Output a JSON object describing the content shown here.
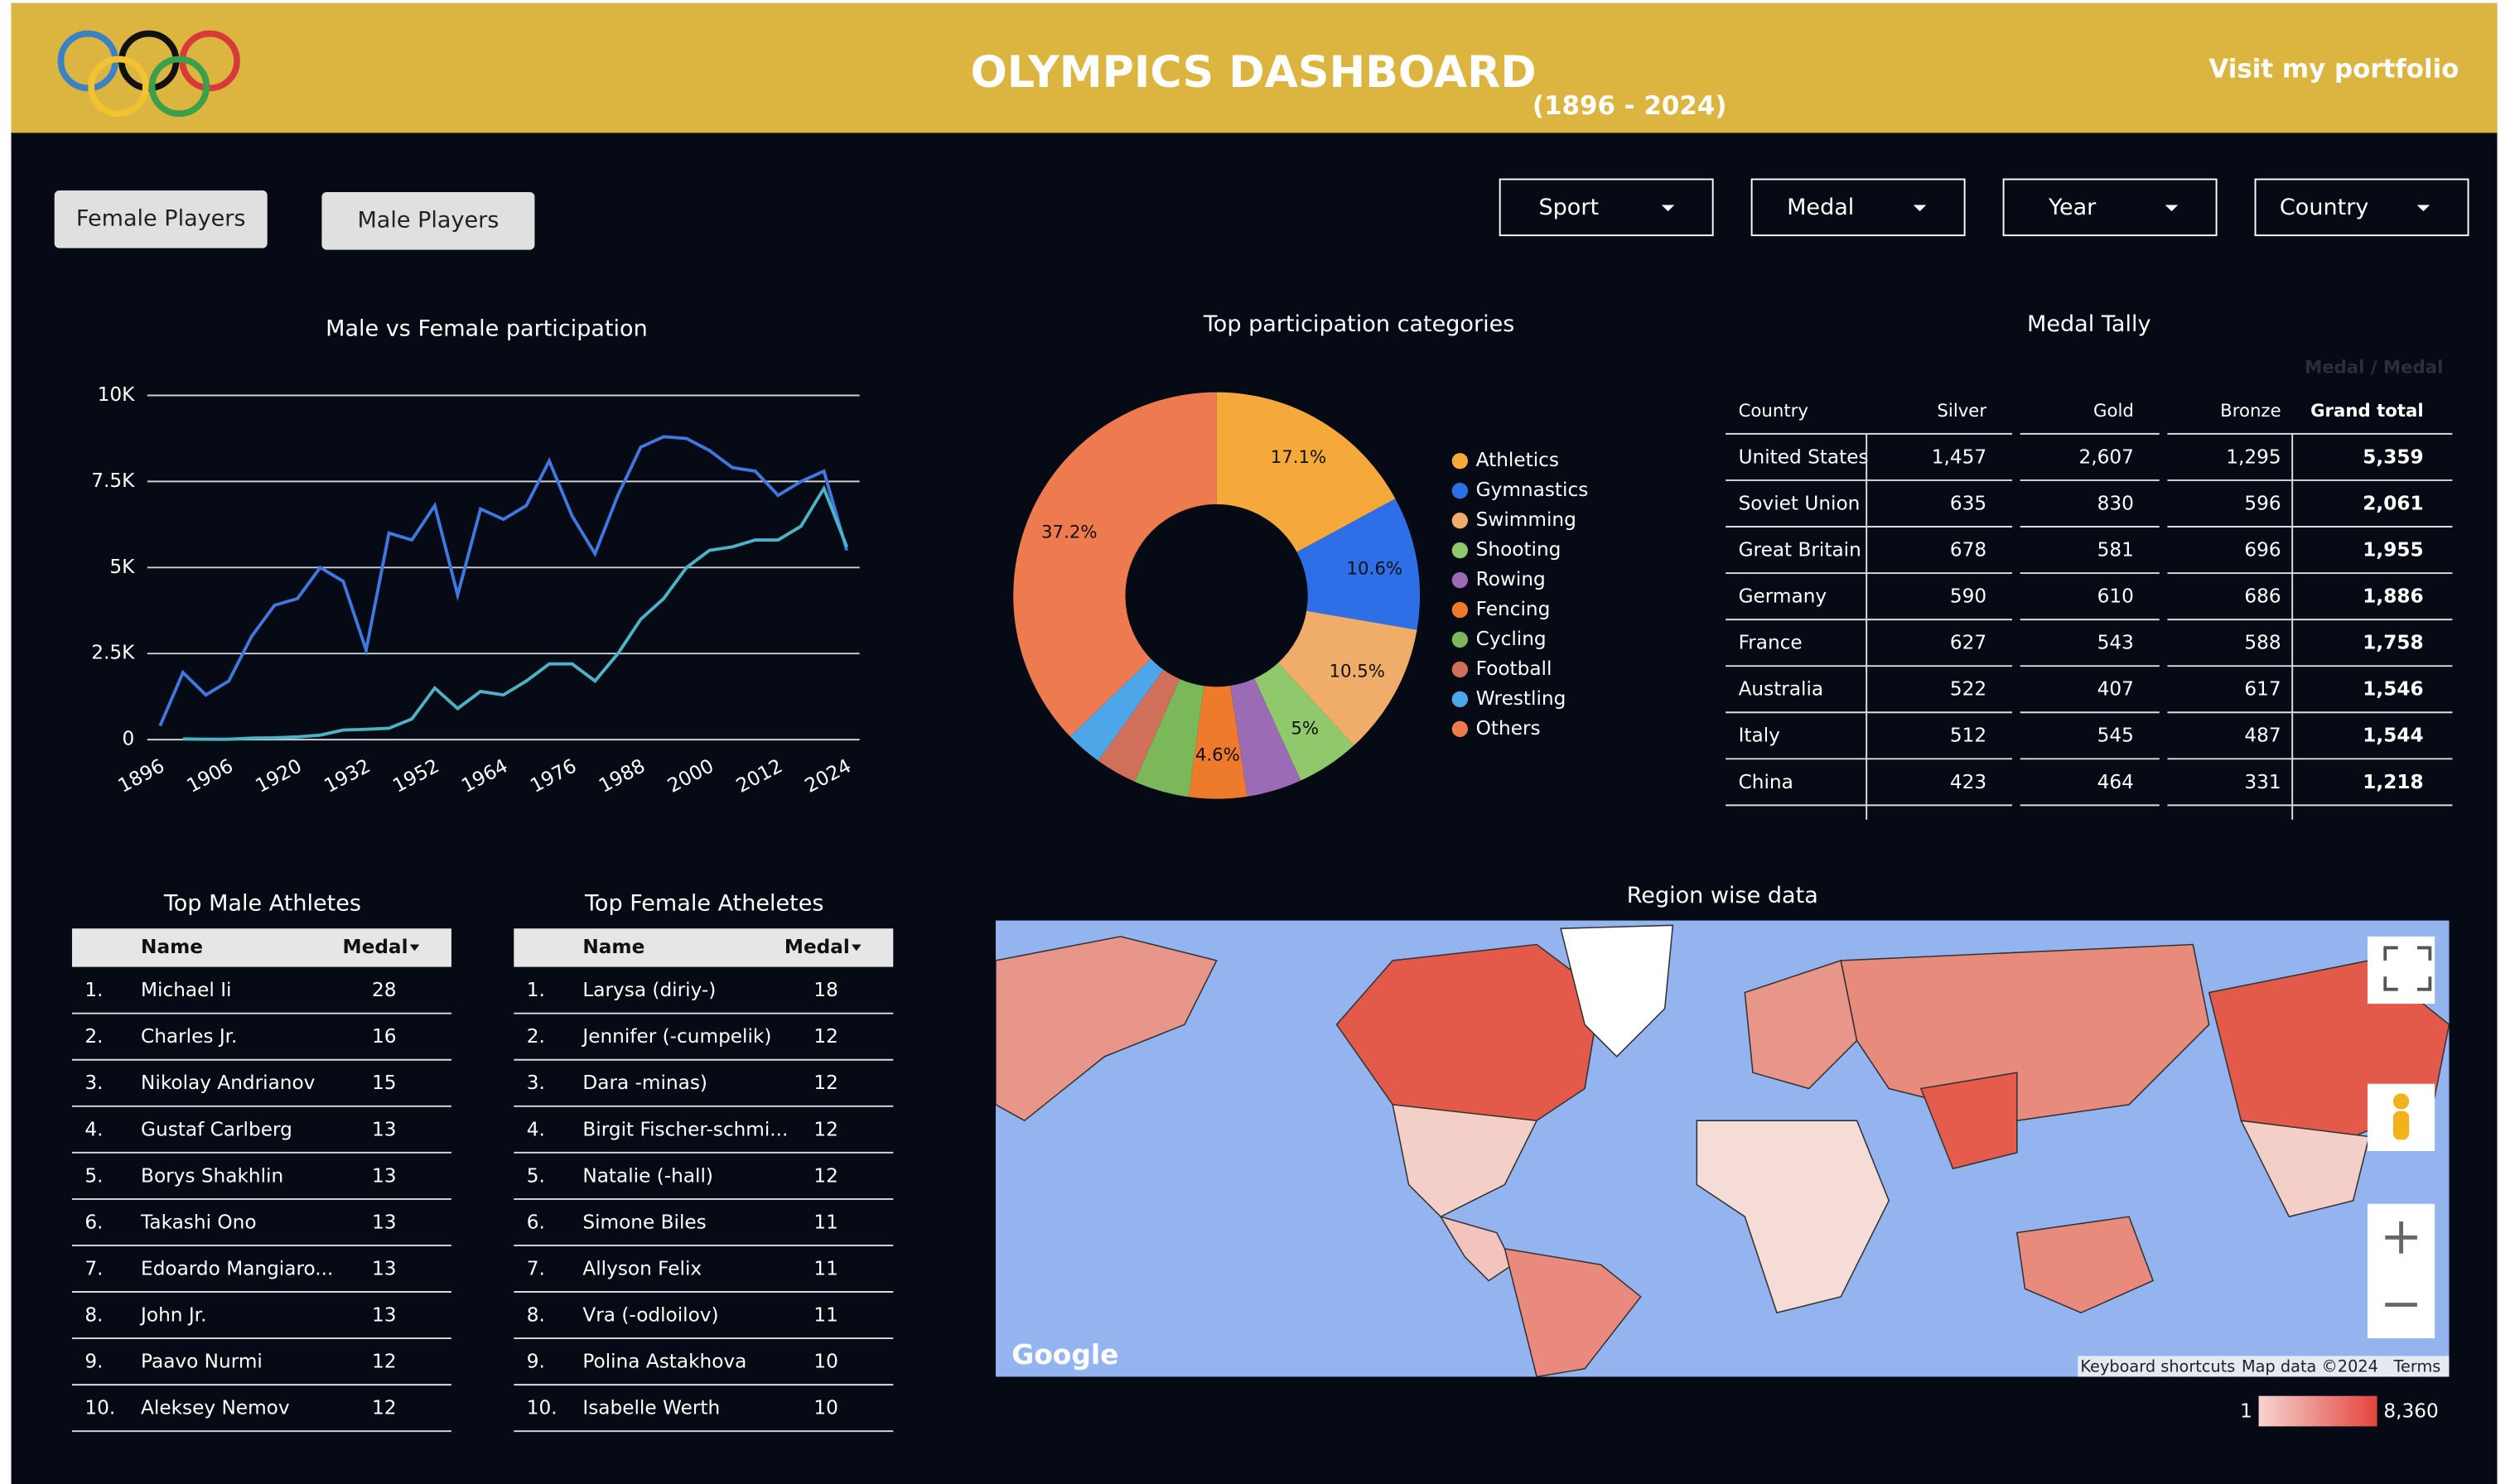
{
  "header": {
    "title": "OLYMPICS DASHBOARD",
    "subtitle": "(1896 - 2024)",
    "link": "Visit my portfolio"
  },
  "buttons": [
    "Female Players",
    "Male Players"
  ],
  "filters": [
    "Sport",
    "Medal",
    "Year",
    "Country"
  ],
  "chart_data": [
    {
      "type": "line",
      "title": "Male vs Female participation",
      "categories": [
        "1896",
        null,
        null,
        "1906",
        null,
        null,
        "1920",
        null,
        null,
        "1932",
        null,
        null,
        "1952",
        null,
        null,
        "1964",
        null,
        null,
        "1976",
        null,
        null,
        "1988",
        null,
        null,
        "2000",
        null,
        null,
        "2012",
        null,
        null,
        "2024"
      ],
      "series": [
        {
          "color": "#3f78e0",
          "values": [
            400,
            1950,
            1300,
            1700,
            3000,
            3900,
            4100,
            5000,
            4600,
            2600,
            6000,
            5800,
            6800,
            4200,
            6700,
            6400,
            6800,
            8100,
            6500,
            5400,
            7100,
            8500,
            8800,
            8750,
            8400,
            7900,
            7800,
            7100,
            7500,
            7800,
            5500
          ]
        },
        {
          "color": "#4cb2c6",
          "values": [
            null,
            20,
            10,
            10,
            40,
            50,
            80,
            130,
            280,
            300,
            330,
            600,
            1500,
            900,
            1400,
            1300,
            1700,
            2200,
            2200,
            1700,
            2500,
            3500,
            4100,
            5000,
            5500,
            5600,
            5800,
            5800,
            6200,
            7300,
            5600
          ]
        }
      ],
      "ylim": [
        0,
        10000
      ],
      "yticks": [
        0,
        {
          "value": 2500,
          "label": "2.5K"
        },
        {
          "value": 5000,
          "label": "5K"
        },
        {
          "value": 7500,
          "label": "7.5K"
        },
        {
          "value": 10000,
          "label": "10K"
        }
      ],
      "grid": true
    },
    {
      "type": "pie",
      "title": "Top participation categories",
      "categories": [
        "Athletics",
        "Gymnastics",
        "Swimming",
        "Shooting",
        "Rowing",
        "Fencing",
        "Cycling",
        "Football",
        "Wrestling",
        "Others"
      ],
      "values": [
        17.1,
        10.6,
        10.5,
        5,
        4.4,
        4.6,
        4.4,
        3.3,
        2.9,
        37.2
      ],
      "value_labels": [
        "17.1%",
        "10.6%",
        "10.5%",
        "5%",
        null,
        "4.6%",
        null,
        null,
        null,
        "37.2%"
      ],
      "colors": [
        "#f4a93a",
        "#2e6fe8",
        "#f0ad6a",
        "#8fc96b",
        "#9b6bb5",
        "#ee7a2c",
        "#7ab85a",
        "#d0705a",
        "#4ea5e8",
        "#ee7a50"
      ],
      "donut": true
    }
  ],
  "medal_tally": {
    "title": "Medal Tally",
    "corner_label": "Medal / Medal",
    "columns": [
      "Country",
      "Silver",
      "Gold",
      "Bronze",
      "Grand total"
    ],
    "rows": [
      [
        "United States",
        "1,457",
        "2,607",
        "1,295",
        "5,359"
      ],
      [
        "Soviet Union",
        "635",
        "830",
        "596",
        "2,061"
      ],
      [
        "Great Britain",
        "678",
        "581",
        "696",
        "1,955"
      ],
      [
        "Germany",
        "590",
        "610",
        "686",
        "1,886"
      ],
      [
        "France",
        "627",
        "543",
        "588",
        "1,758"
      ],
      [
        "Australia",
        "522",
        "407",
        "617",
        "1,546"
      ],
      [
        "Italy",
        "512",
        "545",
        "487",
        "1,544"
      ],
      [
        "China",
        "423",
        "464",
        "331",
        "1,218"
      ]
    ]
  },
  "top_male": {
    "title": "Top Male Athletes",
    "columns": [
      "Name",
      "Medal"
    ],
    "rows": [
      [
        "1.",
        "Michael Ii",
        28
      ],
      [
        "2.",
        "Charles Jr.",
        16
      ],
      [
        "3.",
        "Nikolay Andrianov",
        15
      ],
      [
        "4.",
        "Gustaf Carlberg",
        13
      ],
      [
        "5.",
        "Borys Shakhlin",
        13
      ],
      [
        "6.",
        "Takashi Ono",
        13
      ],
      [
        "7.",
        "Edoardo Mangiaro...",
        13
      ],
      [
        "8.",
        "John Jr.",
        13
      ],
      [
        "9.",
        "Paavo Nurmi",
        12
      ],
      [
        "10.",
        "Aleksey Nemov",
        12
      ]
    ]
  },
  "top_female": {
    "title": "Top Female Atheletes",
    "columns": [
      "Name",
      "Medal"
    ],
    "rows": [
      [
        "1.",
        "Larysa (diriy-)",
        18
      ],
      [
        "2.",
        "Jennifer (-cumpelik)",
        12
      ],
      [
        "3.",
        "Dara -minas)",
        12
      ],
      [
        "4.",
        "Birgit Fischer-schmi...",
        12
      ],
      [
        "5.",
        "Natalie (-hall)",
        12
      ],
      [
        "6.",
        "Simone Biles",
        11
      ],
      [
        "7.",
        "Allyson Felix",
        11
      ],
      [
        "8.",
        "Vra (-odloilov)",
        11
      ],
      [
        "9.",
        "Polina Astakhova",
        10
      ],
      [
        "10.",
        "Isabelle Werth",
        10
      ]
    ]
  },
  "map": {
    "title": "Region wise data",
    "logo": "Google",
    "attribution": [
      "Keyboard shortcuts",
      "Map data ©2024",
      "Terms"
    ],
    "legend_min": 1,
    "legend_max": {
      "value": 8360,
      "label": "8,360"
    }
  }
}
